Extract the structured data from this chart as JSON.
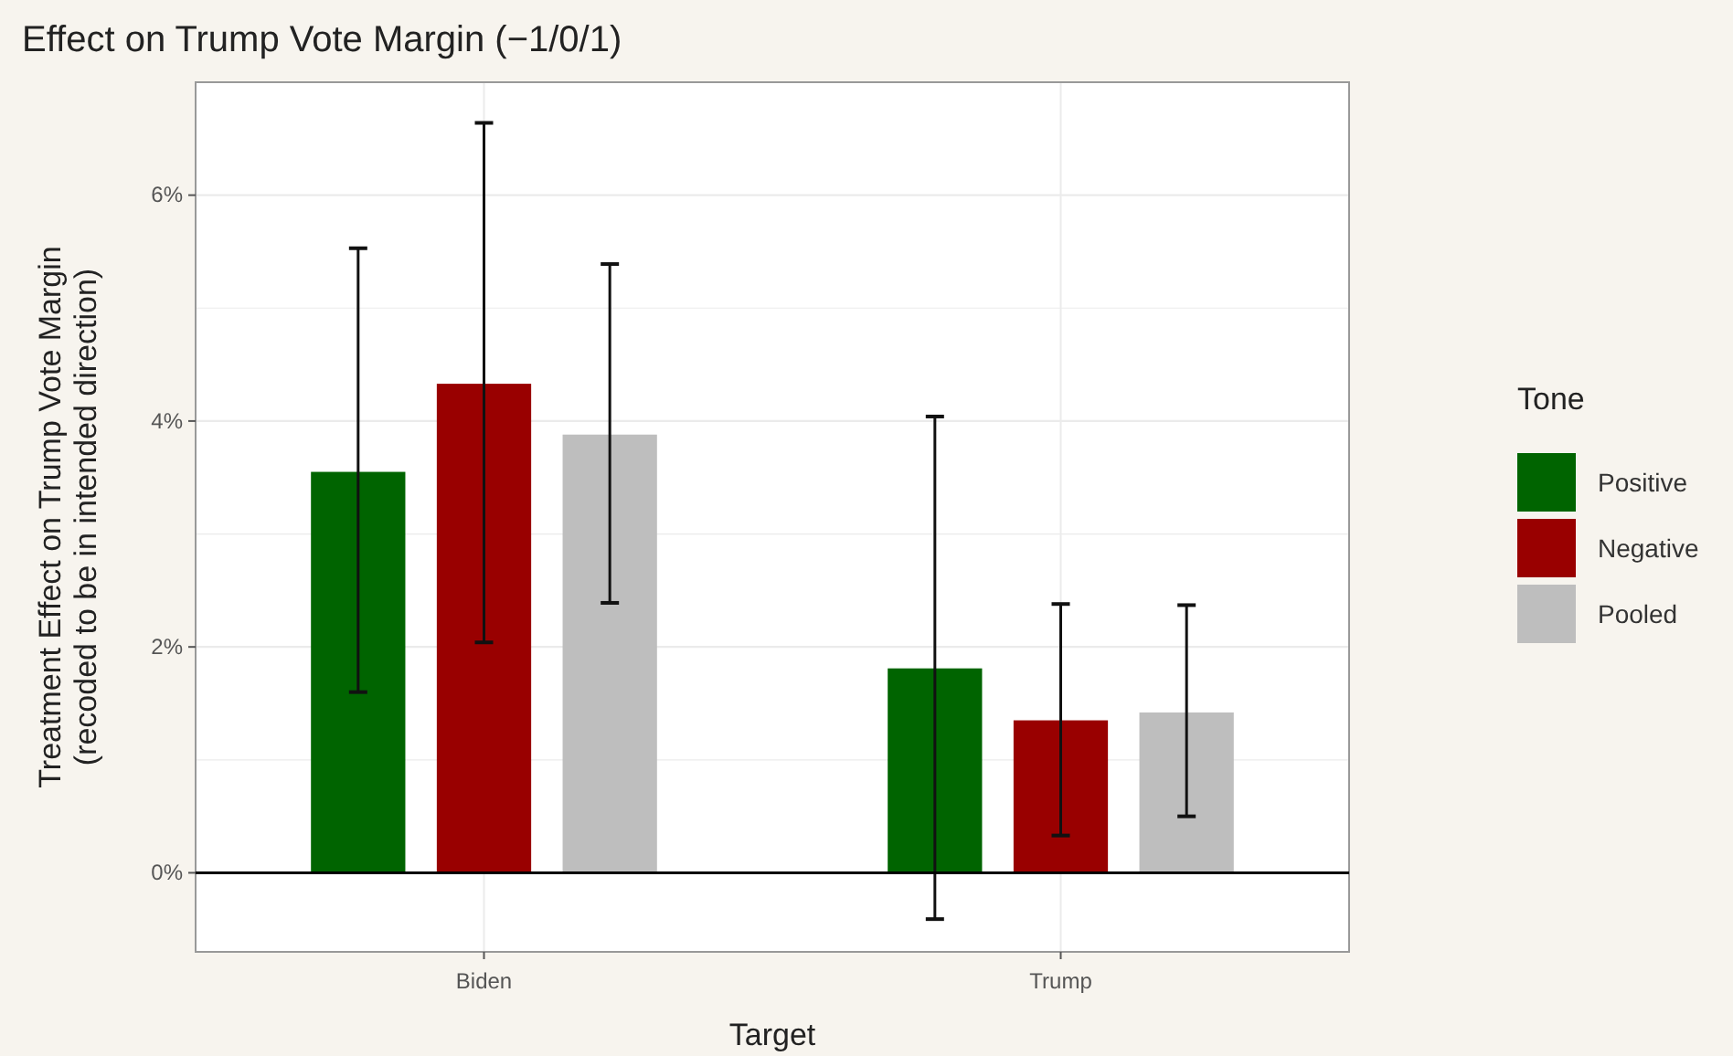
{
  "chart_data": {
    "type": "bar",
    "title": "Effect on Trump Vote Margin (−1/0/1)",
    "xlabel": "Target",
    "ylabel": "Treatment Effect on Trump Vote Margin\n(recoded to be in intended direction)",
    "legend_title": "Tone",
    "categories": [
      "Biden",
      "Trump"
    ],
    "series": [
      {
        "name": "Positive",
        "color": "#006400",
        "values": [
          3.55,
          1.81
        ],
        "errors": [
          [
            1.6,
            5.53
          ],
          [
            -0.41,
            4.04
          ]
        ]
      },
      {
        "name": "Negative",
        "color": "#990000",
        "values": [
          4.33,
          1.35
        ],
        "errors": [
          [
            2.04,
            6.64
          ],
          [
            0.33,
            2.38
          ]
        ]
      },
      {
        "name": "Pooled",
        "color": "#bebebe",
        "values": [
          3.88,
          1.42
        ],
        "errors": [
          [
            2.39,
            5.39
          ],
          [
            0.5,
            2.37
          ]
        ]
      }
    ],
    "ylim": [
      -0.7,
      7.0
    ],
    "yticks": [
      {
        "value": 0,
        "label": "0%"
      },
      {
        "value": 1,
        "label": null
      },
      {
        "value": 2,
        "label": "2%"
      },
      {
        "value": 3,
        "label": null
      },
      {
        "value": 4,
        "label": "4%"
      },
      {
        "value": 5,
        "label": null
      },
      {
        "value": 6,
        "label": "6%"
      }
    ],
    "ref_lines": [
      {
        "axis": "y",
        "value": 0,
        "label": null,
        "color": "#000000"
      }
    ],
    "grid": true,
    "legend": "right"
  }
}
